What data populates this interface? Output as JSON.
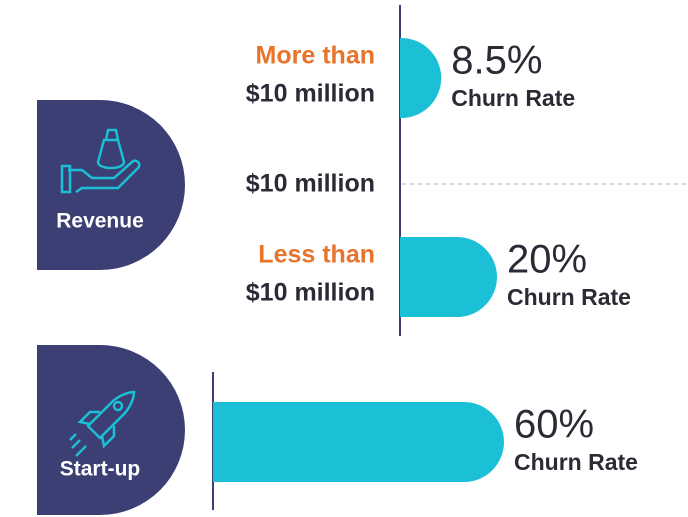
{
  "panels": [
    {
      "label": "Revenue",
      "divider_label": "$10 million",
      "rows": [
        {
          "category_lines": [
            "More than",
            "$10 million"
          ],
          "value": 8.5,
          "value_label": "8.5%",
          "metric": "Churn Rate"
        },
        {
          "category_lines": [
            "Less than",
            "$10 million"
          ],
          "value": 20,
          "value_label": "20%",
          "metric": "Churn Rate"
        }
      ]
    },
    {
      "label": "Start-up",
      "rows": [
        {
          "category_lines": [],
          "value": 60,
          "value_label": "60%",
          "metric": "Churn Rate"
        }
      ]
    }
  ]
}
